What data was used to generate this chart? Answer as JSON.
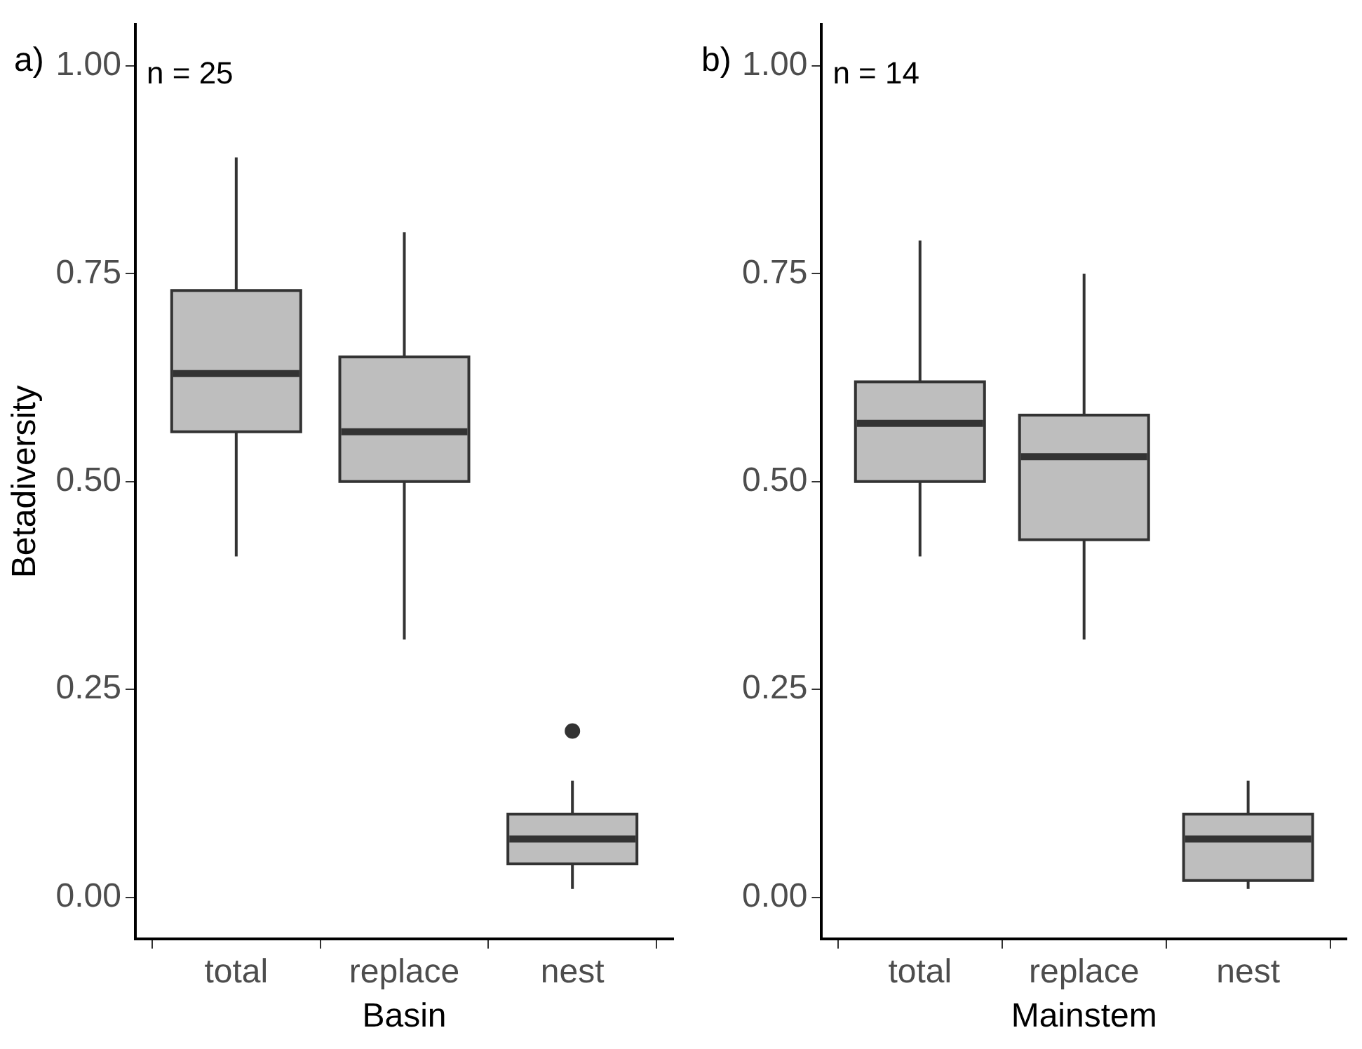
{
  "chart_data": [
    {
      "type": "box",
      "title": "a)",
      "xlabel": "Basin",
      "ylabel": "Betadiversity",
      "categories": [
        "total",
        "replace",
        "nest"
      ],
      "color": "#bebebe",
      "boxes": [
        {
          "low": 0.41,
          "q1": 0.56,
          "median": 0.63,
          "q3": 0.73,
          "high": 0.89
        },
        {
          "low": 0.31,
          "q1": 0.5,
          "median": 0.56,
          "q3": 0.65,
          "high": 0.8
        },
        {
          "low": 0.01,
          "q1": 0.04,
          "median": 0.07,
          "q3": 0.1,
          "high": 0.14,
          "outliers": [
            0.2
          ]
        }
      ],
      "ylim": [
        -0.05,
        1.05
      ],
      "yticks": [
        {
          "value": 0,
          "label": "0.00"
        },
        {
          "value": 0.25,
          "label": "0.25"
        },
        {
          "value": 0.5,
          "label": "0.50"
        },
        {
          "value": 0.75,
          "label": "0.75"
        },
        {
          "value": 1,
          "label": "1.00"
        }
      ],
      "annotations": [
        "n = 25"
      ]
    },
    {
      "type": "box",
      "title": "b)",
      "xlabel": "Mainstem",
      "categories": [
        "total",
        "replace",
        "nest"
      ],
      "color": "#bebebe",
      "boxes": [
        {
          "low": 0.41,
          "q1": 0.5,
          "median": 0.57,
          "q3": 0.62,
          "high": 0.79
        },
        {
          "low": 0.31,
          "q1": 0.43,
          "median": 0.53,
          "q3": 0.58,
          "high": 0.75
        },
        {
          "low": 0.01,
          "q1": 0.02,
          "median": 0.07,
          "q3": 0.1,
          "high": 0.14
        }
      ],
      "ylim": [
        -0.05,
        1.05
      ],
      "yticks": [
        {
          "value": 0,
          "label": "0.00"
        },
        {
          "value": 0.25,
          "label": "0.25"
        },
        {
          "value": 0.5,
          "label": "0.50"
        },
        {
          "value": 0.75,
          "label": "0.75"
        },
        {
          "value": 1,
          "label": "1.00"
        }
      ],
      "annotations": [
        "n = 14"
      ]
    }
  ]
}
